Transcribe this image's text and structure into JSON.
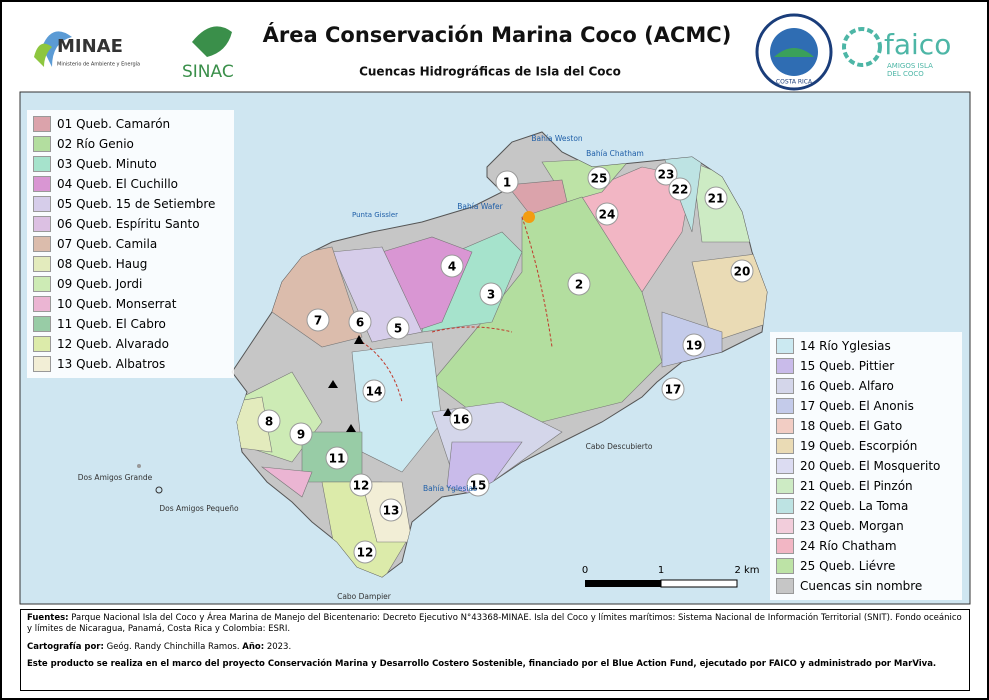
{
  "header": {
    "title": "Área Conservación Marina Coco (ACMC)",
    "subtitle": "Cuencas Hidrográficas de Isla del Coco",
    "logos": [
      "MINAE",
      "Ministerio de Ambiente y Energía",
      "SINAC",
      "COSTA RICA",
      "faico",
      "AMIGOS ISLA",
      "DEL COCO"
    ]
  },
  "legend_left": [
    {
      "label": "01 Queb. Camarón",
      "color": "#dba3ab"
    },
    {
      "label": "02 Río Genio",
      "color": "#b3de9f"
    },
    {
      "label": "03 Queb. Minuto",
      "color": "#a6e3cc"
    },
    {
      "label": "04 Queb. El Cuchillo",
      "color": "#d996d3"
    },
    {
      "label": "05 Queb. 15 de Setiembre",
      "color": "#d6cdea"
    },
    {
      "label": "06 Queb. Espíritu Santo",
      "color": "#dcc0e3"
    },
    {
      "label": "07 Queb. Camila",
      "color": "#dbbcac"
    },
    {
      "label": "08 Queb. Haug",
      "color": "#e3ebbd"
    },
    {
      "label": "09 Queb. Jordi",
      "color": "#cdebb5"
    },
    {
      "label": "10 Queb. Monserrat",
      "color": "#ebb5d3"
    },
    {
      "label": "11 Queb. El Cabro",
      "color": "#98cca6"
    },
    {
      "label": "12 Queb. Alvarado",
      "color": "#dcebaa"
    },
    {
      "label": "13 Queb. Albatros",
      "color": "#f2eed6"
    }
  ],
  "legend_right": [
    {
      "label": "14 Río Yglesias",
      "color": "#cbe9f1"
    },
    {
      "label": "15 Queb. Pittier",
      "color": "#c9bbea"
    },
    {
      "label": "16 Queb. Alfaro",
      "color": "#d4d6ea"
    },
    {
      "label": "17 Queb. El Anonis",
      "color": "#c4cbea"
    },
    {
      "label": "18 Queb. El Gato",
      "color": "#f2cdc4"
    },
    {
      "label": "19 Queb. Escorpión",
      "color": "#eadbb5"
    },
    {
      "label": "20 Queb. El Mosquerito",
      "color": "#dcdcf2"
    },
    {
      "label": "21 Queb. El Pinzón",
      "color": "#cdebc4"
    },
    {
      "label": "22 Queb. La Toma",
      "color": "#bde3e3"
    },
    {
      "label": "23 Queb. Morgan",
      "color": "#f2cddb"
    },
    {
      "label": "24 Río Chatham",
      "color": "#f2b6c4"
    },
    {
      "label": "25 Queb. Liévre",
      "color": "#bde3a6"
    },
    {
      "label": "Cuencas sin nombre",
      "color": "#c6c6c6"
    }
  ],
  "basin_labels": [
    "1",
    "25",
    "23",
    "22",
    "21",
    "24",
    "20",
    "4",
    "3",
    "2",
    "7",
    "6",
    "5",
    "19",
    "17",
    "14",
    "16",
    "8",
    "9",
    "11",
    "15",
    "12",
    "13",
    "12"
  ],
  "places": [
    "Bahía Weston",
    "Bahía Chatham",
    "Bahía Wafer",
    "Punta Gissler",
    "Dos Amigos Grande",
    "Dos Amigos Pequeño",
    "Cabo Descubierto",
    "Bahía Yglesias",
    "Cabo Dampier"
  ],
  "scale": [
    "0",
    "1",
    "2 km"
  ],
  "footer": {
    "sources_label": "Fuentes:",
    "sources": "Parque Nacional Isla del Coco y Área Marina de Manejo del Bicentenario: Decreto Ejecutivo N°43368-MINAE. Isla del Coco y límites marítimos: Sistema Nacional de Información Territorial (SNIT). Fondo oceánico y límites de Nicaragua, Panamá, Costa Rica y Colombia: ESRI.",
    "author_label": "Cartografía por:",
    "author": "Geóg. Randy Chinchilla Ramos.",
    "year_label": "Año:",
    "year": "2023.",
    "project": "Este producto se realiza en el marco del proyecto Conservación Marina y Desarrollo Costero Sostenible, financiado por el Blue Action Fund, ejecutado por FAICO y administrado por MarViva."
  }
}
